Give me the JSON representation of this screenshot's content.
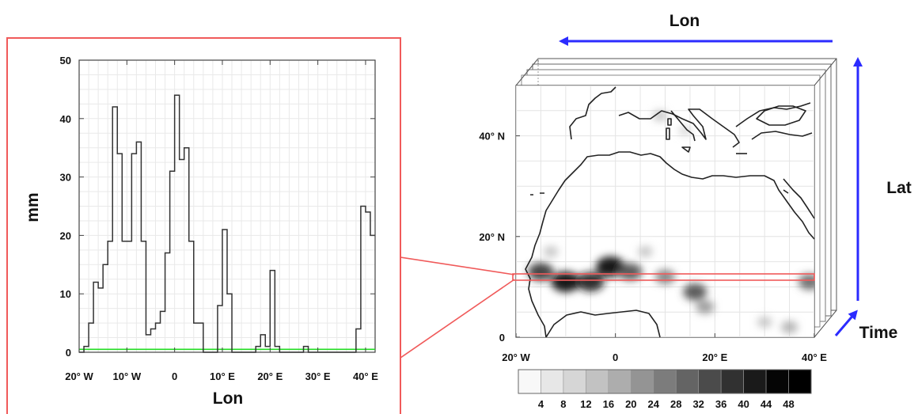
{
  "chart_data": [
    {
      "type": "line",
      "title": "",
      "xlabel": "Lon",
      "ylabel": "mm",
      "xlim": [
        -20,
        42
      ],
      "ylim": [
        0,
        50
      ],
      "xticks": [
        -20,
        -10,
        0,
        10,
        20,
        30,
        40
      ],
      "xtick_labels": [
        "20° W",
        "10° W",
        "0",
        "10° E",
        "20° E",
        "30° E",
        "40° E"
      ],
      "yticks": [
        0,
        10,
        20,
        30,
        40,
        50
      ],
      "ytick_labels": [
        "0",
        "10",
        "20",
        "30",
        "40",
        "50"
      ],
      "grid": true,
      "threshold": {
        "value": 0.5,
        "color": "#22dd22"
      },
      "series": [
        {
          "style": "step",
          "color": "#333333",
          "x": [
            -20,
            -19,
            -18,
            -17,
            -16,
            -15,
            -14,
            -13,
            -12,
            -11,
            -10,
            -9,
            -8,
            -7,
            -6,
            -5,
            -4,
            -3,
            -2,
            -1,
            0,
            1,
            2,
            3,
            4,
            5,
            6,
            7,
            8,
            9,
            10,
            11,
            12,
            13,
            14,
            15,
            16,
            17,
            18,
            19,
            20,
            21,
            22,
            23,
            24,
            25,
            26,
            27,
            28,
            29,
            30,
            31,
            32,
            33,
            34,
            35,
            36,
            37,
            38,
            39,
            40,
            41
          ],
          "y": [
            0,
            1,
            5,
            12,
            11,
            15,
            19,
            42,
            34,
            19,
            19,
            34,
            36,
            19,
            3,
            4,
            5,
            7,
            17,
            31,
            44,
            33,
            35,
            19,
            5,
            5,
            0,
            0,
            0,
            8,
            21,
            10,
            0,
            0,
            0,
            0,
            0,
            1,
            3,
            1,
            14,
            1,
            0,
            0,
            0,
            0,
            0,
            1,
            0,
            0,
            0,
            0,
            0,
            0,
            0,
            0,
            0,
            0,
            4,
            25,
            24,
            20
          ]
        }
      ]
    },
    {
      "type": "heatmap",
      "xlabel": "Lon",
      "ylabel": "Lat",
      "zlabel": "Time",
      "xlim": [
        -20,
        40
      ],
      "ylim": [
        0,
        50
      ],
      "xtick_labels": [
        "20° W",
        "0",
        "20° E",
        "40° E"
      ],
      "ytick_labels": [
        "0",
        "20° N",
        "40° N"
      ],
      "highlighted_row": {
        "lat": 12.5
      },
      "colorbar": {
        "labels": [
          "4",
          "8",
          "12",
          "16",
          "20",
          "24",
          "28",
          "32",
          "36",
          "40",
          "44",
          "48"
        ],
        "colors": [
          "#f8f8f8",
          "#e7e7e7",
          "#d6d6d6",
          "#c2c2c2",
          "#adadad",
          "#949494",
          "#7c7c7c",
          "#646464",
          "#4b4b4b",
          "#313131",
          "#1a1a1a",
          "#050505",
          "#000000"
        ]
      },
      "blobs": [
        {
          "lon": -15,
          "lat": 13,
          "value": 36
        },
        {
          "lon": -10,
          "lat": 11,
          "value": 44
        },
        {
          "lon": -5,
          "lat": 11,
          "value": 40
        },
        {
          "lon": -1,
          "lat": 14,
          "value": 44
        },
        {
          "lon": 3,
          "lat": 13,
          "value": 32
        },
        {
          "lon": 10,
          "lat": 12,
          "value": 24
        },
        {
          "lon": 16,
          "lat": 9,
          "value": 32
        },
        {
          "lon": 18,
          "lat": 6,
          "value": 20
        },
        {
          "lon": 39,
          "lat": 11,
          "value": 28
        },
        {
          "lon": -13,
          "lat": 17,
          "value": 12
        },
        {
          "lon": 6,
          "lat": 17,
          "value": 12
        },
        {
          "lon": 9,
          "lat": 44,
          "value": 12
        },
        {
          "lon": 14,
          "lat": 41,
          "value": 8
        },
        {
          "lon": 30,
          "lat": 3,
          "value": 12
        },
        {
          "lon": 35,
          "lat": 2,
          "value": 16
        }
      ]
    }
  ]
}
